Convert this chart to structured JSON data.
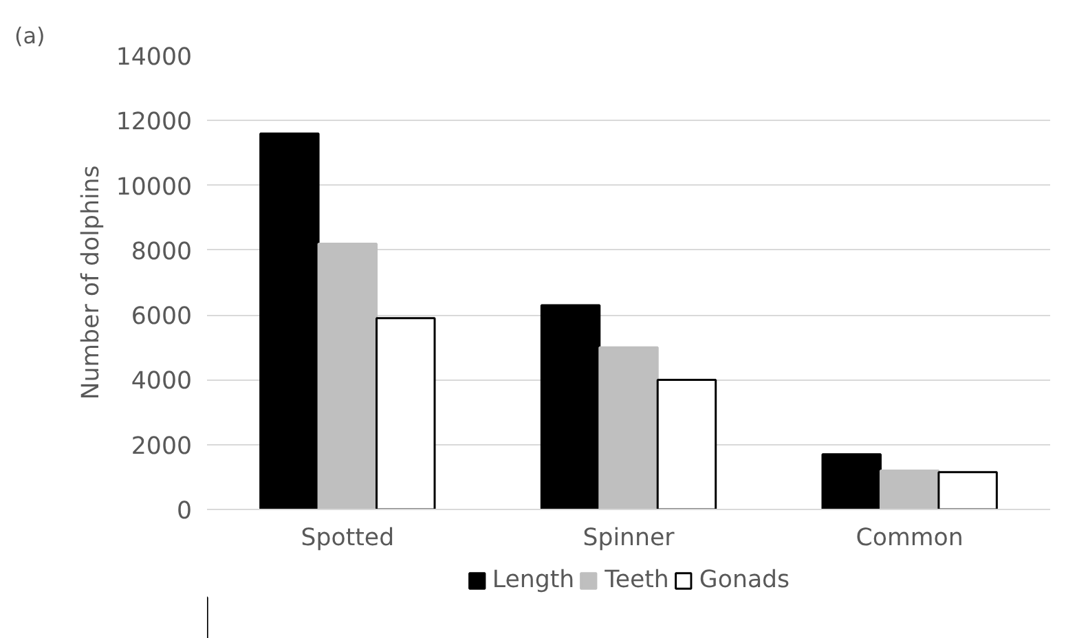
{
  "chart_data": {
    "type": "bar",
    "ylabel": "Number of dolphins",
    "categories": [
      "Spotted",
      "Spinner",
      "Common"
    ],
    "series": [
      {
        "name": "Length",
        "color": "#000000",
        "values": [
          11600,
          6300,
          1700
        ]
      },
      {
        "name": "Teeth",
        "color": "#bfbfbf",
        "values": [
          8200,
          5000,
          1200
        ]
      },
      {
        "name": "Gonads",
        "color": "#ffffff",
        "values": [
          5900,
          4000,
          1150
        ]
      }
    ],
    "ylim": [
      0,
      14000
    ],
    "yticks": [
      0,
      2000,
      4000,
      6000,
      8000,
      10000,
      12000,
      14000
    ],
    "grid": "y",
    "legend": "bottom",
    "annotations": [
      "(a)"
    ]
  }
}
